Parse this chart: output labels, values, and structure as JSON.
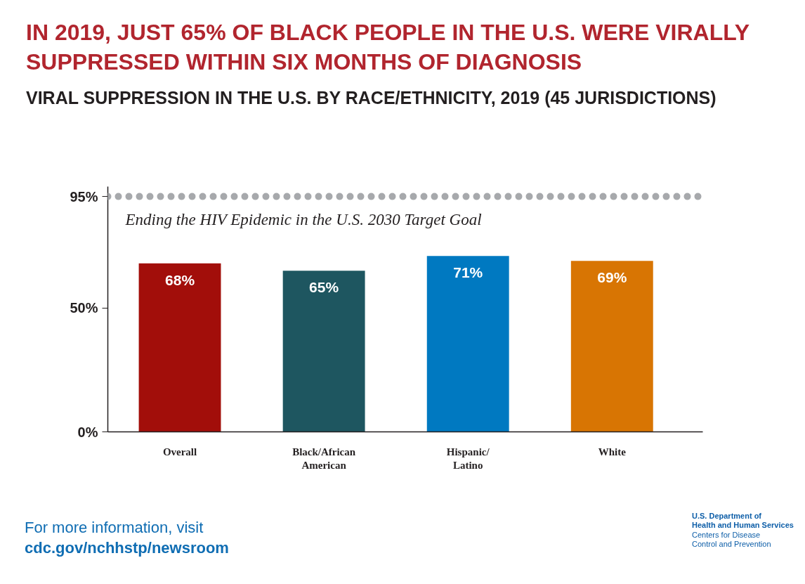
{
  "chart_data": {
    "type": "bar",
    "title": "IN 2019, JUST 65% OF BLACK PEOPLE IN THE U.S. WERE VIRALLY SUPPRESSED WITHIN SIX MONTHS OF DIAGNOSIS",
    "subtitle": "VIRAL SUPPRESSION IN THE U.S. BY RACE/ETHNICITY, 2019 (45 JURISDICTIONS)",
    "categories": [
      "Overall",
      "Black/African\nAmerican",
      "Hispanic/\nLatino",
      "White"
    ],
    "values": [
      68,
      65,
      71,
      69
    ],
    "colors": [
      "#a20e0a",
      "#1e5660",
      "#0079c1",
      "#d87503"
    ],
    "value_labels": [
      "68%",
      "65%",
      "71%",
      "69%"
    ],
    "ylim": [
      0,
      99
    ],
    "yticks": [
      {
        "value": 0,
        "label": "0%"
      },
      {
        "value": 50,
        "label": "50%"
      },
      {
        "value": 95,
        "label": "95%"
      }
    ],
    "ref_lines": [
      {
        "axis": "y",
        "value": 95,
        "label": "Ending the HIV Epidemic in the U.S. 2030 Target Goal",
        "color": "#a7a9ac",
        "line_style": "dotted"
      }
    ],
    "annotations": [
      "For more information, visit",
      "cdc.gov/nchhstp/newsroom",
      "U.S. Department of\nHealth and Human Services",
      "Centers for Disease\nControl and Prevention"
    ]
  }
}
